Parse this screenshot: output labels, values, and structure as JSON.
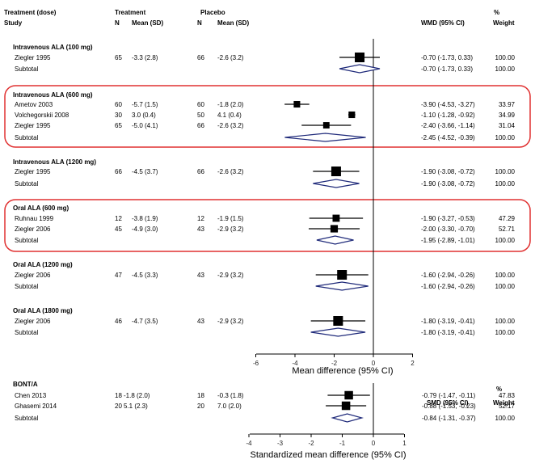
{
  "headers": {
    "treatment_dose": "Treatment (dose)",
    "study": "Study",
    "treatment": "Treatment",
    "placebo": "Placebo",
    "n": "N",
    "mean_sd": "Mean (SD)",
    "wmd": "WMD (95% CI)",
    "smd": "SMD (95% CI)",
    "percent": "%",
    "weight": "Weight"
  },
  "chart_data": [
    {
      "type": "forest",
      "measure": "WMD (95% CI)",
      "xlabel": "Mean difference (95% CI)",
      "xlim": [
        -6.5,
        2.3
      ],
      "xticks": [
        -6,
        -4,
        -2,
        0,
        2
      ],
      "groups": [
        {
          "label": "Intravenous ALA (100 mg)",
          "studies": [
            {
              "name": "Ziegler 1995",
              "tN": "65",
              "tMean": "-3.3 (2.8)",
              "pN": "66",
              "pMean": "-2.6 (3.2)",
              "est": -0.7,
              "lo": -1.73,
              "hi": 0.33,
              "ci": "-0.70 (-1.73, 0.33)",
              "weight": "100.00"
            }
          ],
          "subtotal": {
            "label": "Subtotal",
            "est": -0.7,
            "lo": -1.73,
            "hi": 0.33,
            "ci": "-0.70 (-1.73, 0.33)",
            "weight": "100.00"
          }
        },
        {
          "label": "Intravenous ALA (600 mg)",
          "highlight": true,
          "studies": [
            {
              "name": "Ametov 2003",
              "tN": "60",
              "tMean": "-5.7 (1.5)",
              "pN": "60",
              "pMean": "-1.8 (2.0)",
              "est": -3.9,
              "lo": -4.53,
              "hi": -3.27,
              "ci": "-3.90 (-4.53, -3.27)",
              "weight": "33.97"
            },
            {
              "name": "Volchegorskii 2008",
              "tN": "30",
              "tMean": "3.0 (0.4)",
              "pN": "50",
              "pMean": "4.1 (0.4)",
              "est": -1.1,
              "lo": -1.28,
              "hi": -0.92,
              "ci": "-1.10 (-1.28, -0.92)",
              "weight": "34.99"
            },
            {
              "name": "Ziegler 1995",
              "tN": "65",
              "tMean": "-5.0 (4.1)",
              "pN": "66",
              "pMean": "-2.6 (3.2)",
              "est": -2.4,
              "lo": -3.66,
              "hi": -1.14,
              "ci": "-2.40 (-3.66, -1.14)",
              "weight": "31.04"
            }
          ],
          "subtotal": {
            "label": "Subtotal",
            "est": -2.45,
            "lo": -4.52,
            "hi": -0.39,
            "ci": "-2.45 (-4.52, -0.39)",
            "weight": "100.00"
          }
        },
        {
          "label": "Intravenous ALA (1200 mg)",
          "studies": [
            {
              "name": "Ziegler 1995",
              "tN": "66",
              "tMean": "-4.5 (3.7)",
              "pN": "66",
              "pMean": "-2.6 (3.2)",
              "est": -1.9,
              "lo": -3.08,
              "hi": -0.72,
              "ci": "-1.90 (-3.08, -0.72)",
              "weight": "100.00"
            }
          ],
          "subtotal": {
            "label": "Subtotal",
            "est": -1.9,
            "lo": -3.08,
            "hi": -0.72,
            "ci": "-1.90 (-3.08, -0.72)",
            "weight": "100.00"
          }
        },
        {
          "label": "Oral ALA (600 mg)",
          "highlight": true,
          "studies": [
            {
              "name": "Ruhnau 1999",
              "tN": "12",
              "tMean": "-3.8 (1.9)",
              "pN": "12",
              "pMean": "-1.9 (1.5)",
              "est": -1.9,
              "lo": -3.27,
              "hi": -0.53,
              "ci": "-1.90 (-3.27, -0.53)",
              "weight": "47.29"
            },
            {
              "name": "Ziegler 2006",
              "tN": "45",
              "tMean": "-4.9 (3.0)",
              "pN": "43",
              "pMean": "-2.9 (3.2)",
              "est": -2.0,
              "lo": -3.3,
              "hi": -0.7,
              "ci": "-2.00 (-3.30, -0.70)",
              "weight": "52.71"
            }
          ],
          "subtotal": {
            "label": "Subtotal",
            "est": -1.95,
            "lo": -2.89,
            "hi": -1.01,
            "ci": "-1.95 (-2.89, -1.01)",
            "weight": "100.00"
          }
        },
        {
          "label": "Oral ALA (1200 mg)",
          "studies": [
            {
              "name": "Ziegler 2006",
              "tN": "47",
              "tMean": "-4.5 (3.3)",
              "pN": "43",
              "pMean": "-2.9 (3.2)",
              "est": -1.6,
              "lo": -2.94,
              "hi": -0.26,
              "ci": "-1.60 (-2.94, -0.26)",
              "weight": "100.00"
            }
          ],
          "subtotal": {
            "label": "Subtotal",
            "est": -1.6,
            "lo": -2.94,
            "hi": -0.26,
            "ci": "-1.60 (-2.94, -0.26)",
            "weight": "100.00"
          }
        },
        {
          "label": "Oral ALA (1800 mg)",
          "studies": [
            {
              "name": "Ziegler 2006",
              "tN": "46",
              "tMean": "-4.7 (3.5)",
              "pN": "43",
              "pMean": "-2.9 (3.2)",
              "est": -1.8,
              "lo": -3.19,
              "hi": -0.41,
              "ci": "-1.80 (-3.19, -0.41)",
              "weight": "100.00"
            }
          ],
          "subtotal": {
            "label": "Subtotal",
            "est": -1.8,
            "lo": -3.19,
            "hi": -0.41,
            "ci": "-1.80 (-3.19, -0.41)",
            "weight": "100.00"
          }
        }
      ]
    },
    {
      "type": "forest",
      "measure": "SMD (95% CI)",
      "xlabel": "Standardized mean difference (95% CI)",
      "xlim": [
        -4.3,
        1.1
      ],
      "xticks": [
        -4,
        -3,
        -2,
        -1,
        0,
        1
      ],
      "groups": [
        {
          "label": "BONT/A",
          "studies": [
            {
              "name": "Chen 2013",
              "tN": "18",
              "tMean": "-1.8 (2.0)",
              "pN": "18",
              "pMean": "-0.3 (1.8)",
              "est": -0.79,
              "lo": -1.47,
              "hi": -0.11,
              "ci": "-0.79 (-1.47, -0.11)",
              "weight": "47.83"
            },
            {
              "name": "Ghasemi 2014",
              "tN": "20",
              "tMean": "5.1 (2.3)",
              "pN": "20",
              "pMean": "7.0 (2.0)",
              "est": -0.88,
              "lo": -1.53,
              "hi": -0.23,
              "ci": "-0.88 (-1.53, -0.23)",
              "weight": "52.17"
            }
          ],
          "subtotal": {
            "label": "Subtotal",
            "est": -0.84,
            "lo": -1.31,
            "hi": -0.37,
            "ci": "-0.84 (-1.31, -0.37)",
            "weight": "100.00"
          }
        }
      ]
    }
  ]
}
